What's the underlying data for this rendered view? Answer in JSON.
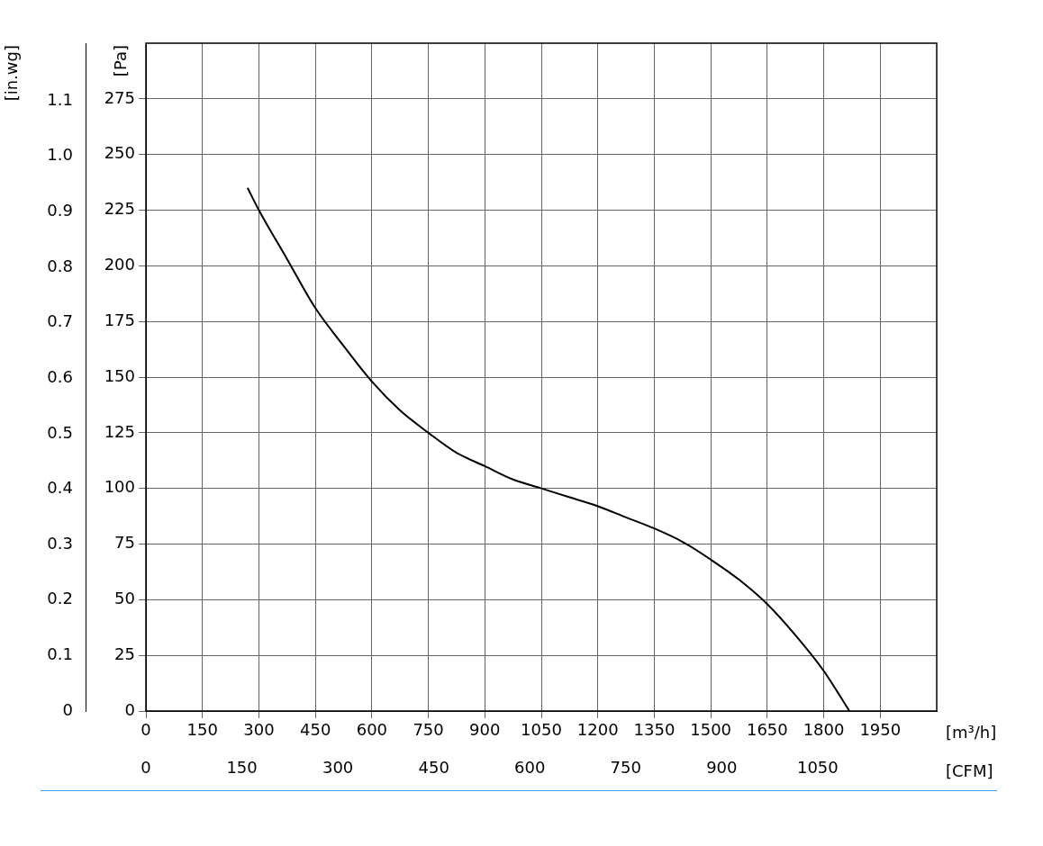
{
  "chart_data": {
    "type": "line",
    "xlabel": "[m³/h]",
    "x2label": "[CFM]",
    "ylabel": "[Pa]",
    "y2label": "[in.wg]",
    "series": [
      {
        "color": "#000000",
        "x": [
          270,
          300,
          375,
          450,
          525,
          600,
          675,
          750,
          825,
          900,
          975,
          1050,
          1125,
          1200,
          1275,
          1350,
          1425,
          1500,
          1575,
          1650,
          1725,
          1800,
          1868
        ],
        "values": [
          235,
          225,
          203,
          181,
          164,
          148,
          135,
          125,
          116,
          110,
          104,
          100,
          96,
          92,
          87,
          82,
          76,
          68,
          59,
          48,
          34,
          18,
          0
        ]
      }
    ],
    "xlim": [
      0,
      2100
    ],
    "xticks": [
      0,
      150,
      300,
      450,
      600,
      750,
      900,
      1050,
      1200,
      1350,
      1500,
      1650,
      1800,
      1950
    ],
    "x2lim": [
      0,
      1236
    ],
    "x2ticks": [
      0,
      150,
      300,
      450,
      600,
      750,
      900,
      1050
    ],
    "ylim": [
      0,
      300
    ],
    "yticks": [
      0,
      25,
      50,
      75,
      100,
      125,
      150,
      175,
      200,
      225,
      250,
      275
    ],
    "y2lim": [
      0,
      1.204
    ],
    "y2ticks": [
      {
        "value": 0,
        "label": "0"
      },
      {
        "value": 0.1,
        "label": "0.1"
      },
      {
        "value": 0.2,
        "label": "0.2"
      },
      {
        "value": 0.3,
        "label": "0.3"
      },
      {
        "value": 0.4,
        "label": "0.4"
      },
      {
        "value": 0.5,
        "label": "0.5"
      },
      {
        "value": 0.6,
        "label": "0.6"
      },
      {
        "value": 0.7,
        "label": "0.7"
      },
      {
        "value": 0.8,
        "label": "0.8"
      },
      {
        "value": 0.9,
        "label": "0.9"
      },
      {
        "value": 1.0,
        "label": "1.0"
      },
      {
        "value": 1.1,
        "label": "1.1"
      }
    ],
    "grid": true,
    "legend": false,
    "marker": "none",
    "line_style": "solid"
  }
}
